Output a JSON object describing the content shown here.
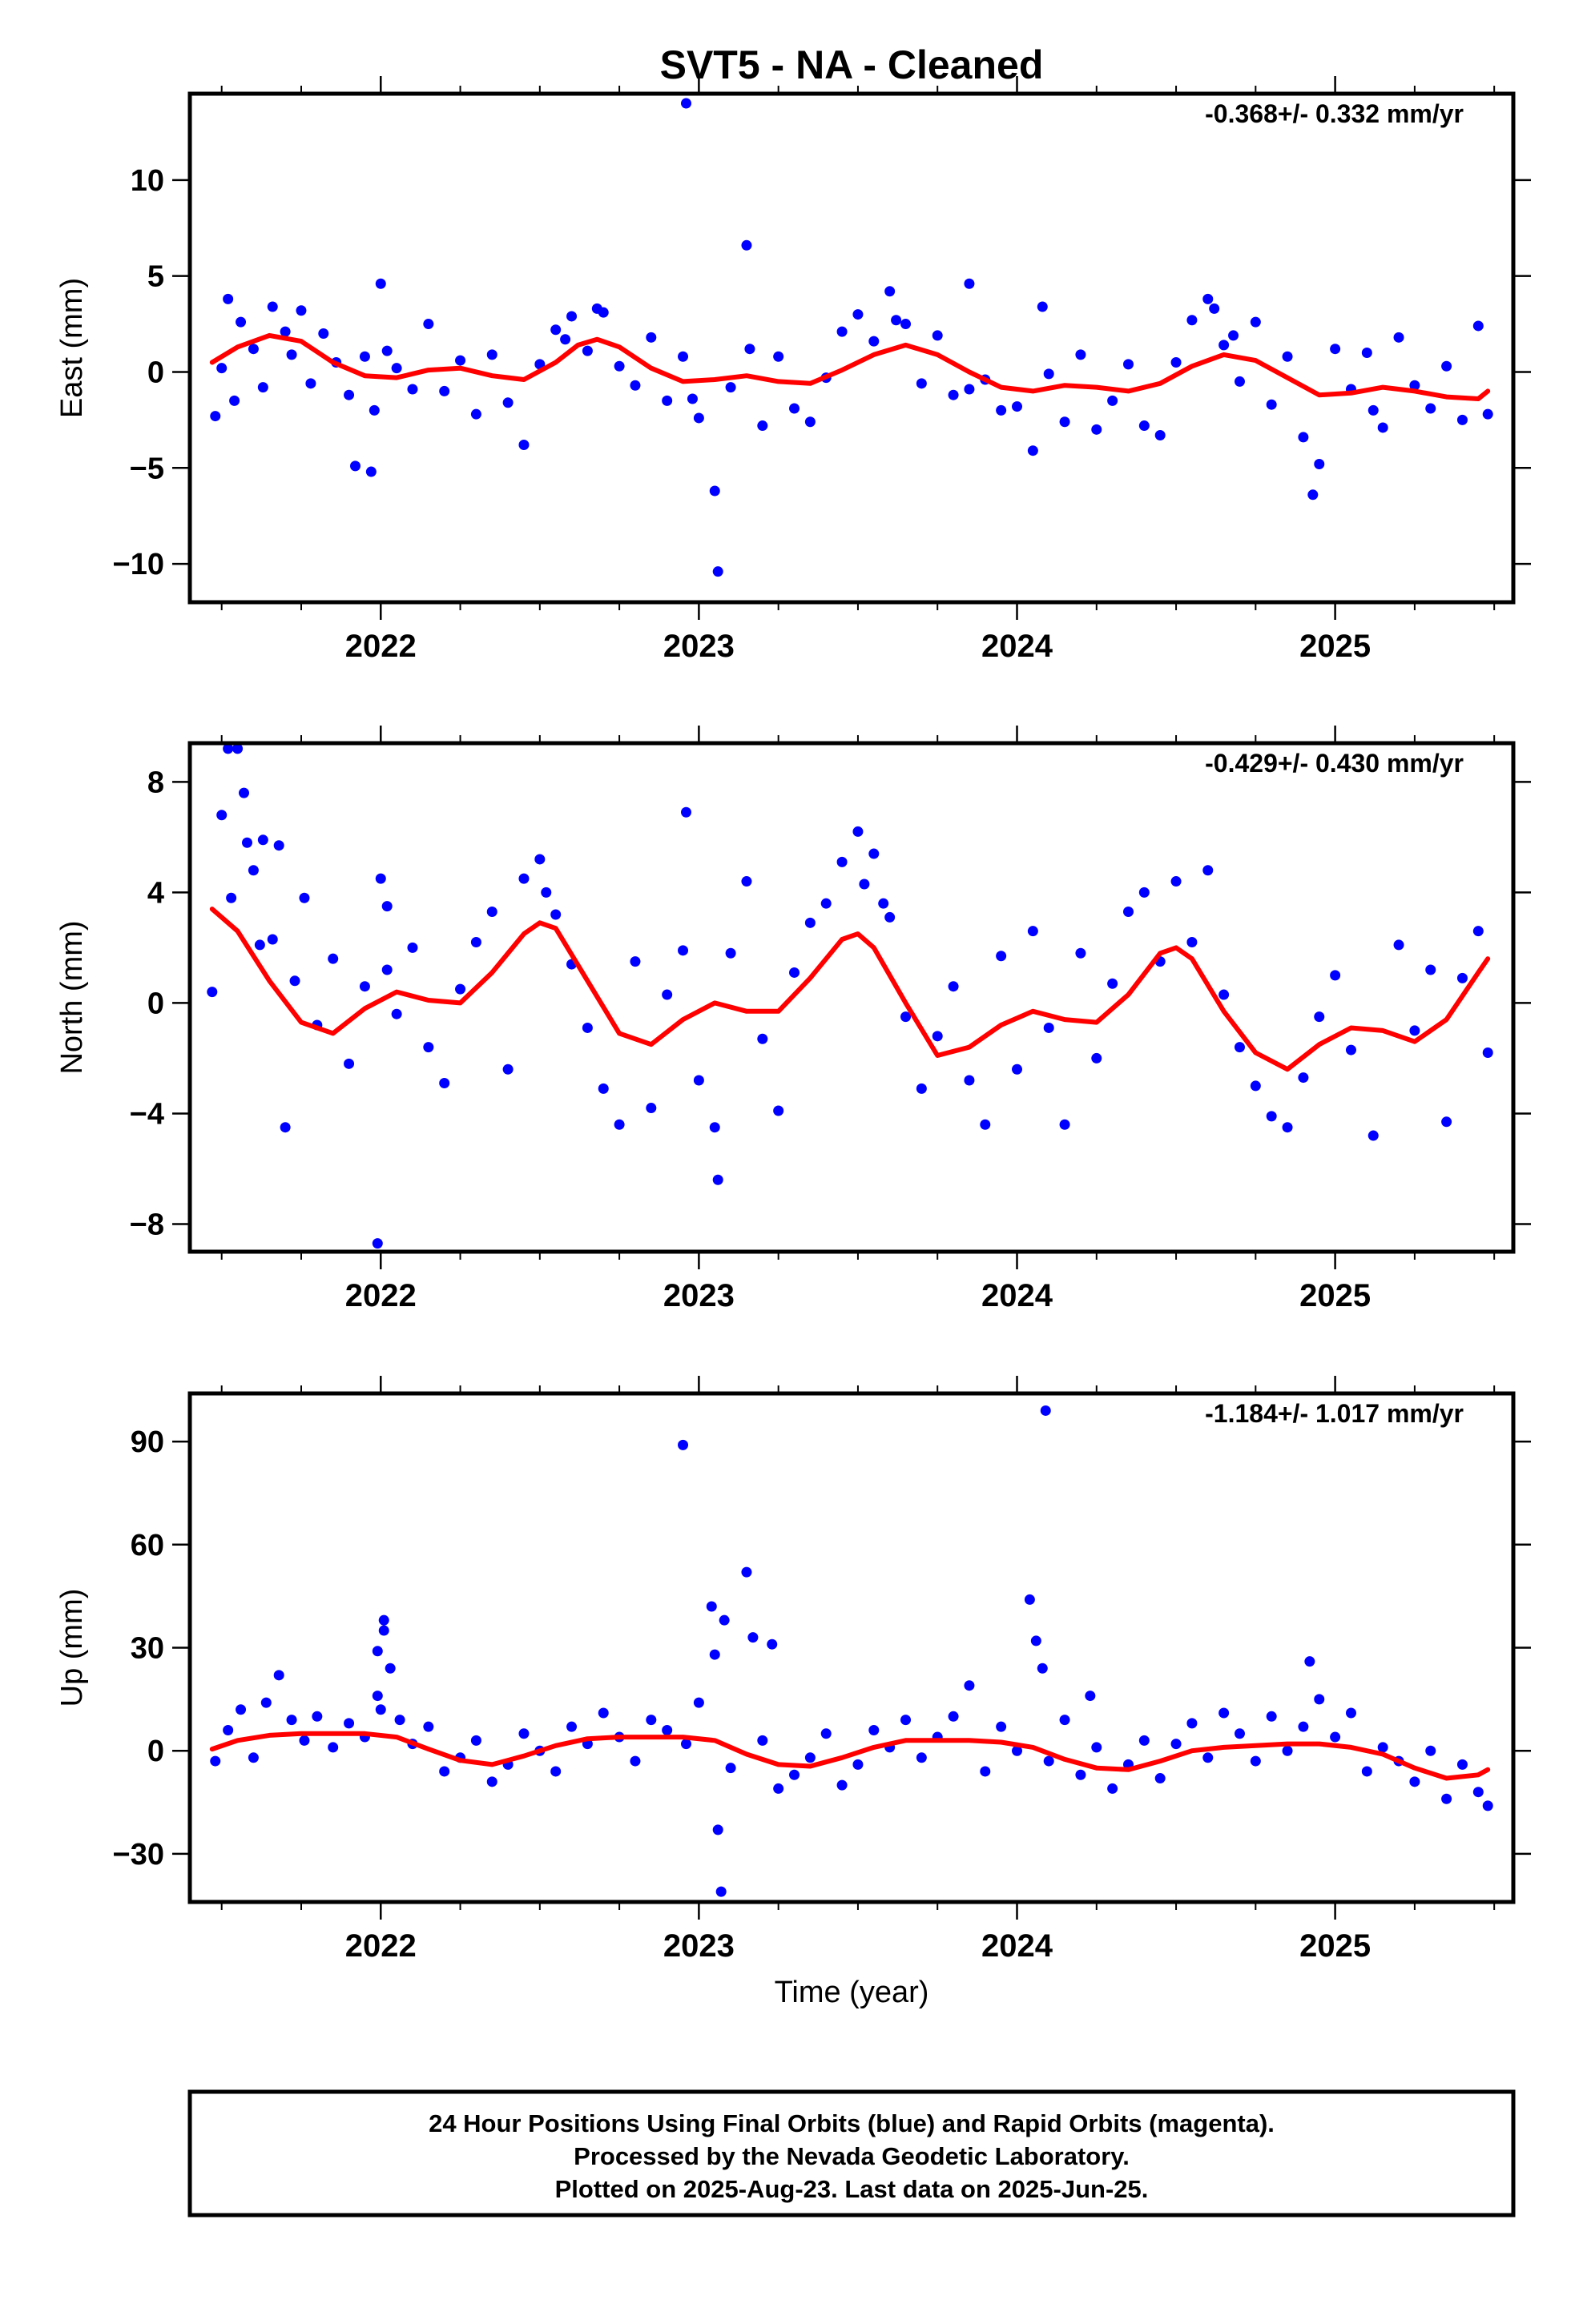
{
  "title": "SVT5  - NA - Cleaned",
  "xlabel": "Time (year)",
  "footer": {
    "line1": "24 Hour Positions Using Final Orbits (blue) and Rapid Orbits (magenta).",
    "line2": "Processed by the Nevada Geodetic Laboratory.",
    "line3": "Plotted on 2025-Aug-23. Last data on 2025-Jun-25."
  },
  "colors": {
    "points": "#0000ff",
    "fit": "#ff0000",
    "frame": "#000000"
  },
  "chart_data": [
    {
      "type": "scatter",
      "panel": "east",
      "ylabel": "East (mm)",
      "rate_label": "-0.368+/- 0.332 mm/yr",
      "xlim": [
        2021.4,
        2025.56
      ],
      "ylim": [
        -12.0,
        14.5
      ],
      "xticks": [
        2022,
        2023,
        2024,
        2025
      ],
      "yticks": [
        -10,
        -5,
        0,
        5,
        10
      ],
      "ytick_labels": [
        "−10",
        "−5",
        "0",
        "5",
        "10"
      ],
      "fit": {
        "x": [
          2021.47,
          2021.55,
          2021.65,
          2021.75,
          2021.85,
          2021.95,
          2022.05,
          2022.15,
          2022.25,
          2022.35,
          2022.45,
          2022.55,
          2022.62,
          2022.68,
          2022.75,
          2022.85,
          2022.95,
          2023.05,
          2023.15,
          2023.25,
          2023.35,
          2023.45,
          2023.55,
          2023.65,
          2023.75,
          2023.85,
          2023.95,
          2024.05,
          2024.15,
          2024.25,
          2024.35,
          2024.45,
          2024.55,
          2024.65,
          2024.75,
          2024.85,
          2024.95,
          2025.05,
          2025.15,
          2025.25,
          2025.35,
          2025.45,
          2025.48
        ],
        "y": [
          0.5,
          1.3,
          1.9,
          1.6,
          0.5,
          -0.2,
          -0.3,
          0.1,
          0.2,
          -0.2,
          -0.4,
          0.5,
          1.4,
          1.7,
          1.3,
          0.2,
          -0.5,
          -0.4,
          -0.2,
          -0.5,
          -0.6,
          0.1,
          0.9,
          1.4,
          0.9,
          0.0,
          -0.8,
          -1.0,
          -0.7,
          -0.8,
          -1.0,
          -0.6,
          0.3,
          0.9,
          0.6,
          -0.3,
          -1.2,
          -1.1,
          -0.8,
          -1.0,
          -1.3,
          -1.4,
          -1.0
        ]
      },
      "points": {
        "x": [
          2021.48,
          2021.5,
          2021.52,
          2021.54,
          2021.56,
          2021.6,
          2021.63,
          2021.66,
          2021.7,
          2021.72,
          2021.75,
          2021.78,
          2021.82,
          2021.86,
          2021.9,
          2021.95,
          2021.98,
          2022.0,
          2022.02,
          2022.05,
          2022.1,
          2022.15,
          2022.2,
          2022.25,
          2022.3,
          2022.35,
          2022.4,
          2022.45,
          2022.5,
          2022.55,
          2022.6,
          2022.65,
          2022.7,
          2022.75,
          2022.8,
          2022.85,
          2022.9,
          2022.95,
          2022.96,
          2022.98,
          2023.0,
          2023.05,
          2023.06,
          2023.1,
          2023.15,
          2023.16,
          2023.2,
          2023.25,
          2023.3,
          2023.35,
          2023.4,
          2023.45,
          2023.5,
          2023.55,
          2023.6,
          2023.65,
          2023.7,
          2023.75,
          2023.8,
          2023.85,
          2023.9,
          2023.95,
          2024.0,
          2024.05,
          2024.08,
          2024.1,
          2024.15,
          2024.2,
          2024.25,
          2024.3,
          2024.35,
          2024.4,
          2024.45,
          2024.5,
          2024.55,
          2024.6,
          2024.65,
          2024.7,
          2024.75,
          2024.8,
          2024.85,
          2024.9,
          2024.93,
          2024.95,
          2025.0,
          2025.05,
          2025.1,
          2025.15,
          2025.2,
          2025.25,
          2025.3,
          2025.35,
          2025.4,
          2025.45,
          2025.48,
          2021.92,
          2021.97,
          2022.58,
          2022.68,
          2023.62,
          2023.85,
          2024.62,
          2024.68,
          2025.12
        ],
        "y": [
          -2.3,
          0.2,
          3.8,
          -1.5,
          2.6,
          1.2,
          -0.8,
          3.4,
          2.1,
          0.9,
          3.2,
          -0.6,
          2.0,
          0.5,
          -1.2,
          0.8,
          -2.0,
          4.6,
          1.1,
          0.2,
          -0.9,
          2.5,
          -1.0,
          0.6,
          -2.2,
          0.9,
          -1.6,
          -3.8,
          0.4,
          2.2,
          2.9,
          1.1,
          3.1,
          0.3,
          -0.7,
          1.8,
          -1.5,
          0.8,
          14.0,
          -1.4,
          -2.4,
          -6.2,
          -10.4,
          -0.8,
          6.6,
          1.2,
          -2.8,
          0.8,
          -1.9,
          -2.6,
          -0.3,
          2.1,
          3.0,
          1.6,
          4.2,
          2.5,
          -0.6,
          1.9,
          -1.2,
          4.6,
          -0.4,
          -2.0,
          -1.8,
          -4.1,
          3.4,
          -0.1,
          -2.6,
          0.9,
          -3.0,
          -1.5,
          0.4,
          -2.8,
          -3.3,
          0.5,
          2.7,
          3.8,
          1.4,
          -0.5,
          2.6,
          -1.7,
          0.8,
          -3.4,
          -6.4,
          -4.8,
          1.2,
          -0.9,
          1.0,
          -2.9,
          1.8,
          -0.7,
          -1.9,
          0.3,
          -2.5,
          2.4,
          -2.2,
          -4.9,
          -5.2,
          1.7,
          3.3,
          2.7,
          -0.9,
          3.3,
          1.9,
          -2.0
        ]
      }
    },
    {
      "type": "scatter",
      "panel": "north",
      "ylabel": "North (mm)",
      "rate_label": "-0.429+/- 0.430 mm/yr",
      "xlim": [
        2021.4,
        2025.56
      ],
      "ylim": [
        -9.0,
        9.4
      ],
      "xticks": [
        2022,
        2023,
        2024,
        2025
      ],
      "yticks": [
        -8,
        -4,
        0,
        4,
        8
      ],
      "ytick_labels": [
        "−8",
        "−4",
        "0",
        "4",
        "8"
      ],
      "fit": {
        "x": [
          2021.47,
          2021.55,
          2021.65,
          2021.75,
          2021.85,
          2021.95,
          2022.05,
          2022.15,
          2022.25,
          2022.35,
          2022.45,
          2022.5,
          2022.55,
          2022.65,
          2022.75,
          2022.85,
          2022.95,
          2023.05,
          2023.15,
          2023.25,
          2023.35,
          2023.45,
          2023.5,
          2023.55,
          2023.65,
          2023.75,
          2023.85,
          2023.95,
          2024.05,
          2024.15,
          2024.25,
          2024.35,
          2024.45,
          2024.5,
          2024.55,
          2024.65,
          2024.75,
          2024.85,
          2024.95,
          2025.05,
          2025.15,
          2025.25,
          2025.35,
          2025.45,
          2025.48
        ],
        "y": [
          3.4,
          2.6,
          0.8,
          -0.7,
          -1.1,
          -0.2,
          0.4,
          0.1,
          0.0,
          1.1,
          2.5,
          2.9,
          2.7,
          0.8,
          -1.1,
          -1.5,
          -0.6,
          0.0,
          -0.3,
          -0.3,
          0.9,
          2.3,
          2.5,
          2.0,
          0.0,
          -1.9,
          -1.6,
          -0.8,
          -0.3,
          -0.6,
          -0.7,
          0.3,
          1.8,
          2.0,
          1.6,
          -0.3,
          -1.8,
          -2.4,
          -1.5,
          -0.9,
          -1.0,
          -1.4,
          -0.6,
          1.1,
          1.6
        ]
      },
      "points": {
        "x": [
          2021.47,
          2021.5,
          2021.52,
          2021.53,
          2021.55,
          2021.57,
          2021.6,
          2021.63,
          2021.66,
          2021.7,
          2021.73,
          2021.76,
          2021.8,
          2021.85,
          2021.9,
          2021.95,
          2021.99,
          2022.0,
          2022.02,
          2022.05,
          2022.1,
          2022.15,
          2022.2,
          2022.25,
          2022.3,
          2022.35,
          2022.4,
          2022.45,
          2022.5,
          2022.55,
          2022.6,
          2022.65,
          2022.7,
          2022.75,
          2022.8,
          2022.85,
          2022.9,
          2022.95,
          2022.96,
          2023.0,
          2023.05,
          2023.06,
          2023.1,
          2023.15,
          2023.2,
          2023.25,
          2023.3,
          2023.35,
          2023.4,
          2023.45,
          2023.5,
          2023.55,
          2023.6,
          2023.65,
          2023.7,
          2023.75,
          2023.8,
          2023.85,
          2023.9,
          2023.95,
          2024.0,
          2024.05,
          2024.1,
          2024.15,
          2024.2,
          2024.25,
          2024.3,
          2024.35,
          2024.4,
          2024.45,
          2024.5,
          2024.55,
          2024.6,
          2024.65,
          2024.7,
          2024.75,
          2024.8,
          2024.85,
          2024.9,
          2024.95,
          2025.0,
          2025.05,
          2025.12,
          2025.2,
          2025.25,
          2025.3,
          2025.35,
          2025.4,
          2025.45,
          2025.48,
          2021.58,
          2021.62,
          2021.68,
          2022.02,
          2022.52,
          2023.52,
          2023.58
        ],
        "y": [
          0.4,
          6.8,
          9.2,
          3.8,
          9.2,
          7.6,
          4.8,
          5.9,
          2.3,
          -4.5,
          0.8,
          3.8,
          -0.8,
          1.6,
          -2.2,
          0.6,
          -8.7,
          4.5,
          1.2,
          -0.4,
          2.0,
          -1.6,
          -2.9,
          0.5,
          2.2,
          3.3,
          -2.4,
          4.5,
          5.2,
          3.2,
          1.4,
          -0.9,
          -3.1,
          -4.4,
          1.5,
          -3.8,
          0.3,
          1.9,
          6.9,
          -2.8,
          -4.5,
          -6.4,
          1.8,
          4.4,
          -1.3,
          -3.9,
          1.1,
          2.9,
          3.6,
          5.1,
          6.2,
          5.4,
          3.1,
          -0.5,
          -3.1,
          -1.2,
          0.6,
          -2.8,
          -4.4,
          1.7,
          -2.4,
          2.6,
          -0.9,
          -4.4,
          1.8,
          -2.0,
          0.7,
          3.3,
          4.0,
          1.5,
          4.4,
          2.2,
          4.8,
          0.3,
          -1.6,
          -3.0,
          -4.1,
          -4.5,
          -2.7,
          -0.5,
          1.0,
          -1.7,
          -4.8,
          2.1,
          -1.0,
          1.2,
          -4.3,
          0.9,
          2.6,
          -1.8,
          5.8,
          2.1,
          5.7,
          3.5,
          4.0,
          4.3,
          3.6
        ]
      }
    },
    {
      "type": "scatter",
      "panel": "up",
      "ylabel": "Up (mm)",
      "rate_label": "-1.184+/- 1.017 mm/yr",
      "xlim": [
        2021.4,
        2025.56
      ],
      "ylim": [
        -44.0,
        104.0
      ],
      "xticks": [
        2022,
        2023,
        2024,
        2025
      ],
      "yticks": [
        -30,
        0,
        30,
        60,
        90
      ],
      "ytick_labels": [
        "−30",
        "0",
        "30",
        "60",
        "90"
      ],
      "fit": {
        "x": [
          2021.47,
          2021.55,
          2021.65,
          2021.75,
          2021.85,
          2021.95,
          2022.05,
          2022.15,
          2022.25,
          2022.35,
          2022.45,
          2022.55,
          2022.65,
          2022.75,
          2022.85,
          2022.95,
          2023.05,
          2023.15,
          2023.25,
          2023.35,
          2023.45,
          2023.55,
          2023.65,
          2023.75,
          2023.85,
          2023.95,
          2024.05,
          2024.15,
          2024.25,
          2024.35,
          2024.45,
          2024.55,
          2024.65,
          2024.75,
          2024.85,
          2024.95,
          2025.05,
          2025.15,
          2025.25,
          2025.35,
          2025.45,
          2025.48
        ],
        "y": [
          0.5,
          3.0,
          4.5,
          5.0,
          5.0,
          5.0,
          4.0,
          0.5,
          -2.8,
          -4.0,
          -1.5,
          1.5,
          3.5,
          4.0,
          4.0,
          4.0,
          3.0,
          -1.0,
          -4.0,
          -4.5,
          -2.0,
          1.0,
          3.0,
          3.0,
          3.0,
          2.5,
          1.0,
          -2.5,
          -5.0,
          -5.5,
          -3.0,
          0.0,
          1.0,
          1.5,
          2.0,
          2.0,
          1.0,
          -1.0,
          -5.0,
          -8.0,
          -7.0,
          -5.5
        ]
      },
      "points": {
        "x": [
          2021.48,
          2021.52,
          2021.56,
          2021.6,
          2021.64,
          2021.68,
          2021.72,
          2021.76,
          2021.8,
          2021.85,
          2021.9,
          2021.95,
          2021.99,
          2022.0,
          2022.01,
          2022.03,
          2022.06,
          2022.1,
          2022.15,
          2022.2,
          2022.25,
          2022.3,
          2022.35,
          2022.4,
          2022.45,
          2022.5,
          2022.55,
          2022.6,
          2022.65,
          2022.7,
          2022.75,
          2022.8,
          2022.85,
          2022.9,
          2022.95,
          2022.96,
          2023.0,
          2023.04,
          2023.05,
          2023.06,
          2023.07,
          2023.1,
          2023.15,
          2023.17,
          2023.2,
          2023.25,
          2023.3,
          2023.35,
          2023.4,
          2023.45,
          2023.5,
          2023.55,
          2023.6,
          2023.65,
          2023.7,
          2023.75,
          2023.8,
          2023.85,
          2023.9,
          2023.95,
          2024.0,
          2024.04,
          2024.06,
          2024.08,
          2024.1,
          2024.15,
          2024.2,
          2024.23,
          2024.25,
          2024.3,
          2024.35,
          2024.4,
          2024.45,
          2024.5,
          2024.55,
          2024.6,
          2024.65,
          2024.7,
          2024.75,
          2024.8,
          2024.85,
          2024.9,
          2024.92,
          2024.95,
          2025.0,
          2025.05,
          2025.1,
          2025.15,
          2025.2,
          2025.25,
          2025.3,
          2025.35,
          2025.4,
          2025.45,
          2025.48,
          2023.08,
          2023.23,
          2024.09,
          2021.99,
          2022.01
        ],
        "y": [
          -3,
          6,
          12,
          -2,
          14,
          22,
          9,
          3,
          10,
          1,
          8,
          4,
          16,
          12,
          38,
          24,
          9,
          2,
          7,
          -6,
          -2,
          3,
          -9,
          -4,
          5,
          0,
          -6,
          7,
          2,
          11,
          4,
          -3,
          9,
          6,
          89,
          2,
          14,
          42,
          28,
          -23,
          -41,
          -5,
          52,
          33,
          3,
          -11,
          -7,
          -2,
          5,
          -10,
          -4,
          6,
          1,
          9,
          -2,
          4,
          10,
          19,
          -6,
          7,
          0,
          44,
          32,
          24,
          -3,
          9,
          -7,
          16,
          1,
          -11,
          -4,
          3,
          -8,
          2,
          8,
          -2,
          11,
          5,
          -3,
          10,
          0,
          7,
          26,
          15,
          4,
          11,
          -6,
          1,
          -3,
          -9,
          0,
          -14,
          -4,
          -12,
          -16,
          38,
          31,
          99,
          29,
          35
        ]
      }
    }
  ]
}
